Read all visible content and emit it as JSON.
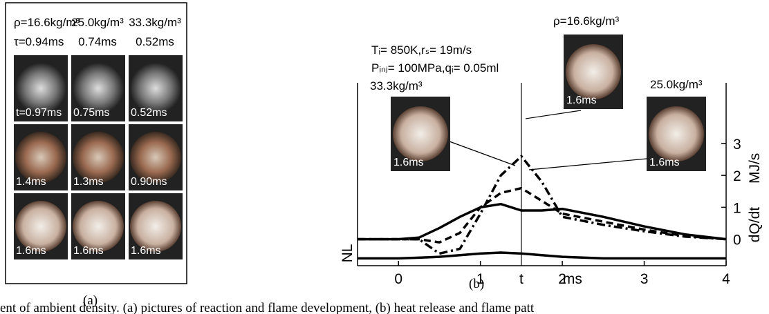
{
  "panel_a": {
    "columns": [
      {
        "density": "ρ=16.6kg/m³",
        "tau": "τ=0.94ms"
      },
      {
        "density": "25.0kg/m³",
        "tau": "0.74ms"
      },
      {
        "density": "33.3kg/m³",
        "tau": "0.52ms"
      }
    ],
    "rows": [
      [
        "t=0.97ms",
        "0.75ms",
        "0.52ms"
      ],
      [
        "1.4ms",
        "1.3ms",
        "0.90ms"
      ],
      [
        "1.6ms",
        "1.6ms",
        "1.6ms"
      ]
    ],
    "label": "(a)"
  },
  "chart_data": {
    "type": "line",
    "conditions": [
      "Tᵢ= 850K,rₛ= 19m/s",
      "Pᵢₙⱼ= 100MPa,qᵢ= 0.05ml"
    ],
    "x_label": "t",
    "x_unit": "ms",
    "y2_label": "dQ/dt MJ/s",
    "panel_label": "(b)",
    "x": [
      -0.5,
      0,
      0.25,
      0.5,
      0.75,
      1,
      1.25,
      1.5,
      1.75,
      2,
      2.5,
      3,
      3.5,
      4
    ],
    "series": [
      {
        "color": "#000",
        "dash": "solid",
        "values": [
          0,
          0,
          0.05,
          0.35,
          0.7,
          1.0,
          1.1,
          0.9,
          0.9,
          0.95,
          0.7,
          0.4,
          0.15,
          0
        ]
      },
      {
        "color": "#000",
        "dash": "dashed",
        "values": [
          0,
          0,
          0,
          -0.1,
          0.2,
          1.0,
          1.45,
          1.6,
          1.2,
          0.8,
          0.55,
          0.3,
          0.1,
          0
        ]
      },
      {
        "color": "#000",
        "dash": "dashdot",
        "values": [
          0,
          0,
          0,
          -0.45,
          -0.3,
          0.8,
          2.0,
          2.6,
          1.8,
          0.7,
          0.45,
          0.25,
          0.08,
          0
        ]
      },
      {
        "name": "NL",
        "color": "#000",
        "dash": "solid",
        "values": [
          -0.6,
          -0.6,
          -0.58,
          -0.55,
          -0.5,
          -0.45,
          -0.42,
          -0.45,
          -0.5,
          -0.55,
          -0.6,
          -0.6,
          -0.6,
          -0.6
        ]
      }
    ],
    "time_marker": 1.5,
    "insets": [
      {
        "label": "33.3kg/m³",
        "time": "1.6ms"
      },
      {
        "label": "ρ=16.6kg/m³",
        "time": "1.6ms"
      },
      {
        "label": "25.0kg/m³",
        "time": "1.6ms"
      }
    ],
    "xlim": [
      -0.5,
      4
    ],
    "xticks": [
      0,
      1,
      2,
      3,
      4
    ],
    "ylim": [
      -0.83,
      4.9
    ],
    "yticks": [
      0,
      1,
      2,
      3
    ]
  },
  "caption": "ent of ambient density. (a) pictures of reaction and flame development, (b) heat release and flame patt"
}
